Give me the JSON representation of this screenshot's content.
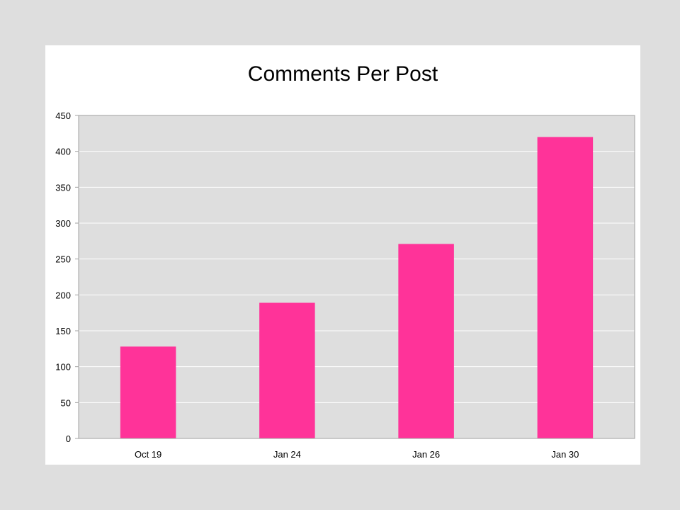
{
  "chart_data": {
    "type": "bar",
    "title": "Comments Per Post",
    "xlabel": "",
    "ylabel": "",
    "categories": [
      "Oct 19",
      "Jan 24",
      "Jan 26",
      "Jan 30"
    ],
    "values": [
      128,
      189,
      271,
      420
    ],
    "ylim": [
      0,
      450
    ],
    "yticks": [
      0,
      50,
      100,
      150,
      200,
      250,
      300,
      350,
      400,
      450
    ],
    "grid": true,
    "legend": "none",
    "colors": {
      "bar": "#ff3399",
      "plot_background": "#dedede",
      "gridline": "#ffffff",
      "axis": "#a0a0a0"
    }
  }
}
